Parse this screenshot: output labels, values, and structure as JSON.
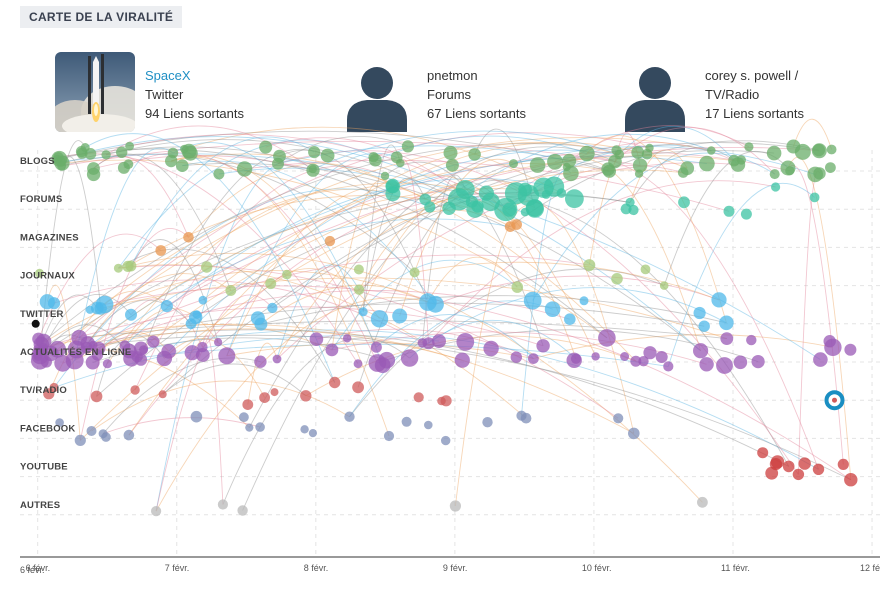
{
  "header": {
    "title": "CARTE DE LA VIRALITÉ"
  },
  "sources": [
    {
      "name": "SpaceX",
      "channel": "Twitter",
      "links": "94 Liens sortants",
      "image": "rocket-launch-photo",
      "is_link": true
    },
    {
      "name": "pnetmon",
      "channel": "Forums",
      "links": "67 Liens sortants",
      "image": "person-silhouette-icon",
      "is_link": false
    },
    {
      "name": "corey s. powell /",
      "channel": "TV/Radio",
      "links": "17 Liens sortants",
      "image": "person-silhouette-icon",
      "is_link": false
    }
  ],
  "colors": {
    "blogs": "#6aae6a",
    "forums": "#3cc3a3",
    "magazines": "#e8964f",
    "journaux": "#a6c97a",
    "twitter": "#4fb8ea",
    "actualites": "#9a59b5",
    "tvradio": "#cf5b5b",
    "facebook": "#7f8fb8",
    "youtube": "#cc3d3d",
    "autres": "#b9b9b9",
    "edge_gray": "#8f8f8f",
    "edge_pink": "#e3839a",
    "edge_blue": "#59b3e3",
    "edge_orange": "#eda55f",
    "highlight": "#1a8ec2"
  },
  "chart_data": {
    "type": "scatter",
    "title": "",
    "xlabel": "",
    "ylabel": "",
    "categories": [
      "BLOGS",
      "FORUMS",
      "MAGAZINES",
      "JOURNAUX",
      "TWITTER",
      "ACTUALITÉS EN LIGNE",
      "TV/RADIO",
      "FACEBOOK",
      "YOUTUBE",
      "AUTRES"
    ],
    "category_keys": [
      "blogs",
      "forums",
      "magazines",
      "journaux",
      "twitter",
      "actualites",
      "tvradio",
      "facebook",
      "youtube",
      "autres"
    ],
    "x_ticks": [
      {
        "label": "6 févr.",
        "x": 5.88
      },
      {
        "label": "6 févr.",
        "x": 6.0
      },
      {
        "label": "7 févr.",
        "x": 7.0
      },
      {
        "label": "8 févr.",
        "x": 8.0
      },
      {
        "label": "9 févr.",
        "x": 9.0
      },
      {
        "label": "10 févr.",
        "x": 10.0
      },
      {
        "label": "11 févr.",
        "x": 11.0
      },
      {
        "label": "12 févr.",
        "x": 12.0
      }
    ],
    "xlim": [
      5.88,
      12.05
    ],
    "grid": true,
    "highlight_point": {
      "category": "tvradio",
      "x": 11.73
    },
    "clusters": [
      {
        "category": "blogs",
        "x_from": 6.0,
        "x_to": 12.0,
        "count": 78,
        "r_min": 4,
        "r_max": 8,
        "seed": 3
      },
      {
        "category": "forums",
        "x_from": 8.5,
        "x_to": 9.9,
        "count": 26,
        "r_min": 4,
        "r_max": 12,
        "seed": 11
      },
      {
        "category": "forums",
        "x_from": 9.9,
        "x_to": 11.8,
        "count": 8,
        "r_min": 4,
        "r_max": 6,
        "seed": 12
      },
      {
        "category": "magazines",
        "x_from": 6.5,
        "x_to": 9.7,
        "count": 5,
        "r_min": 5,
        "r_max": 6,
        "seed": 17
      },
      {
        "category": "journaux",
        "x_from": 6.0,
        "x_to": 10.9,
        "count": 16,
        "r_min": 4,
        "r_max": 6,
        "seed": 21
      },
      {
        "category": "twitter",
        "x_from": 6.0,
        "x_to": 11.2,
        "count": 28,
        "r_min": 4,
        "r_max": 9,
        "seed": 25
      },
      {
        "category": "actualites",
        "x_from": 6.0,
        "x_to": 12.0,
        "count": 80,
        "r_min": 4,
        "r_max": 9,
        "seed": 31
      },
      {
        "category": "tvradio",
        "x_from": 6.0,
        "x_to": 9.1,
        "count": 14,
        "r_min": 4,
        "r_max": 6,
        "seed": 37
      },
      {
        "category": "facebook",
        "x_from": 6.0,
        "x_to": 10.3,
        "count": 22,
        "r_min": 4,
        "r_max": 6,
        "seed": 41
      },
      {
        "category": "youtube",
        "x_from": 10.95,
        "x_to": 11.85,
        "count": 10,
        "r_min": 5,
        "r_max": 7,
        "seed": 47
      },
      {
        "category": "autres",
        "x_from": 6.8,
        "x_to": 10.9,
        "count": 5,
        "r_min": 5,
        "r_max": 6,
        "seed": 53
      }
    ],
    "edge_count": 190
  }
}
